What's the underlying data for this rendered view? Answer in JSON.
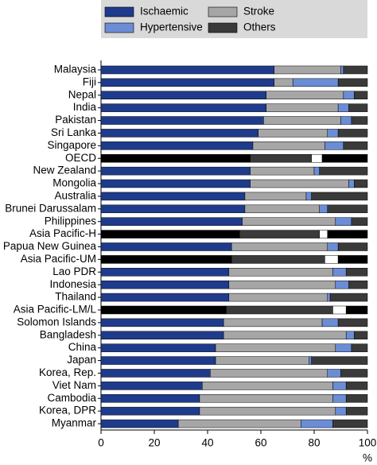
{
  "chart_data": {
    "type": "stacked-barh",
    "categories": [
      "Malaysia",
      "Fiji",
      "Nepal",
      "India",
      "Pakistan",
      "Sri Lanka",
      "Singapore",
      "OECD",
      "New Zealand",
      "Mongolia",
      "Australia",
      "Brunei Darussalam",
      "Philippines",
      "Asia Pacific-H",
      "Papua New Guinea",
      "Asia Pacific-UM",
      "Lao PDR",
      "Indonesia",
      "Thailand",
      "Asia Pacific-LM/L",
      "Solomon Islands",
      "Bangladesh",
      "China",
      "Japan",
      "Korea, Rep.",
      "Viet Nam",
      "Cambodia",
      "Korea, DPR",
      "Myanmar"
    ],
    "highlighted": [
      false,
      false,
      false,
      false,
      false,
      false,
      false,
      true,
      false,
      false,
      false,
      false,
      false,
      true,
      false,
      true,
      false,
      false,
      false,
      true,
      false,
      false,
      false,
      false,
      false,
      false,
      false,
      false,
      false
    ],
    "series": [
      {
        "name": "Ischaemic",
        "color": "#1f3b8c",
        "highlight_color": "#000000",
        "values": [
          65,
          65,
          62,
          62,
          61,
          59,
          57,
          56,
          56,
          56,
          54,
          54,
          53,
          52,
          49,
          49,
          48,
          48,
          48,
          47,
          46,
          46,
          43,
          43,
          41,
          38,
          37,
          37,
          29
        ]
      },
      {
        "name": "Stroke",
        "color": "#a6a6a6",
        "highlight_color": "#3a3a3a",
        "values": [
          25,
          7,
          29,
          27,
          29,
          26,
          27,
          23,
          24,
          37,
          23,
          28,
          35,
          30,
          36,
          35,
          39,
          40,
          37,
          40,
          37,
          46,
          45,
          35,
          44,
          49,
          50,
          51,
          46
        ]
      },
      {
        "name": "Hypertensive",
        "color": "#6b8dd6",
        "highlight_color": "#ffffff",
        "values": [
          1,
          17,
          4,
          4,
          4,
          4,
          7,
          4,
          2,
          2,
          2,
          3,
          6,
          3,
          4,
          5,
          5,
          5,
          1,
          5,
          6,
          3,
          6,
          1,
          5,
          5,
          5,
          4,
          12
        ]
      },
      {
        "name": "Others",
        "color": "#3a3a3a",
        "highlight_color": "#000000",
        "values": [
          9,
          11,
          5,
          7,
          6,
          11,
          9,
          17,
          18,
          5,
          21,
          15,
          6,
          15,
          11,
          11,
          8,
          7,
          14,
          8,
          11,
          5,
          6,
          21,
          10,
          8,
          8,
          8,
          13
        ]
      }
    ],
    "xlabel": "%",
    "xlim": [
      0,
      100
    ],
    "xticks": [
      0,
      20,
      40,
      60,
      80,
      100
    ],
    "grid": false
  }
}
